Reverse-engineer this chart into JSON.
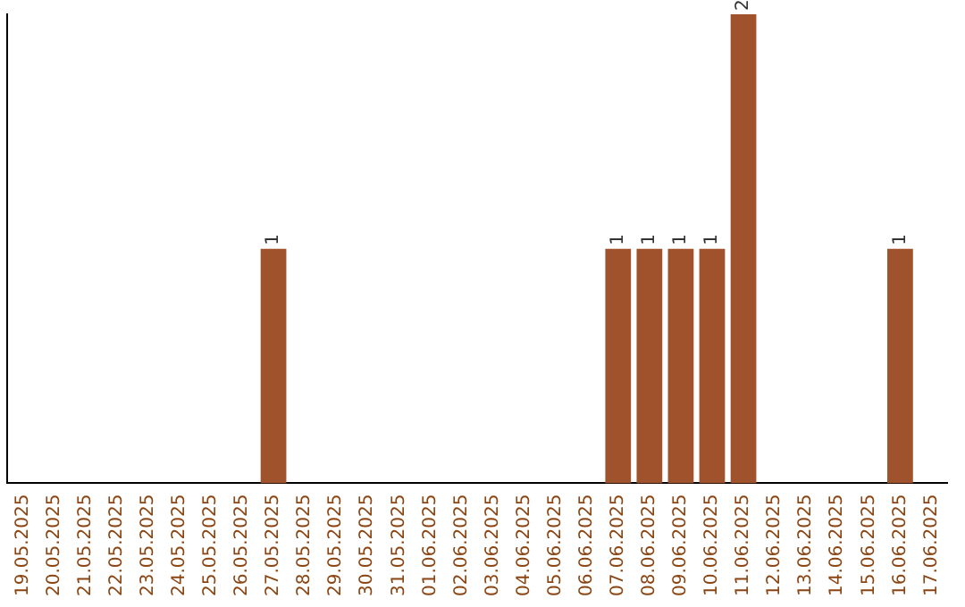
{
  "chart_data": {
    "type": "bar",
    "categories": [
      "19.05.2025",
      "20.05.2025",
      "21.05.2025",
      "22.05.2025",
      "23.05.2025",
      "24.05.2025",
      "25.05.2025",
      "26.05.2025",
      "27.05.2025",
      "28.05.2025",
      "29.05.2025",
      "30.05.2025",
      "31.05.2025",
      "01.06.2025",
      "02.06.2025",
      "03.06.2025",
      "04.06.2025",
      "05.06.2025",
      "06.06.2025",
      "07.06.2025",
      "08.06.2025",
      "09.06.2025",
      "10.06.2025",
      "11.06.2025",
      "12.06.2025",
      "13.06.2025",
      "14.06.2025",
      "15.06.2025",
      "16.06.2025",
      "17.06.2025"
    ],
    "values": [
      0,
      0,
      0,
      0,
      0,
      0,
      0,
      0,
      1,
      0,
      0,
      0,
      0,
      0,
      0,
      0,
      0,
      0,
      0,
      1,
      1,
      1,
      1,
      2,
      0,
      0,
      0,
      0,
      1,
      0
    ],
    "value_labels": [
      null,
      null,
      null,
      null,
      null,
      null,
      null,
      null,
      "1",
      null,
      null,
      null,
      null,
      null,
      null,
      null,
      null,
      null,
      null,
      "1",
      "1",
      "1",
      "1",
      "2",
      null,
      null,
      null,
      null,
      "1",
      null
    ],
    "color": "#a0522d",
    "grid": false,
    "legend": false,
    "tick_labels": "x"
  }
}
